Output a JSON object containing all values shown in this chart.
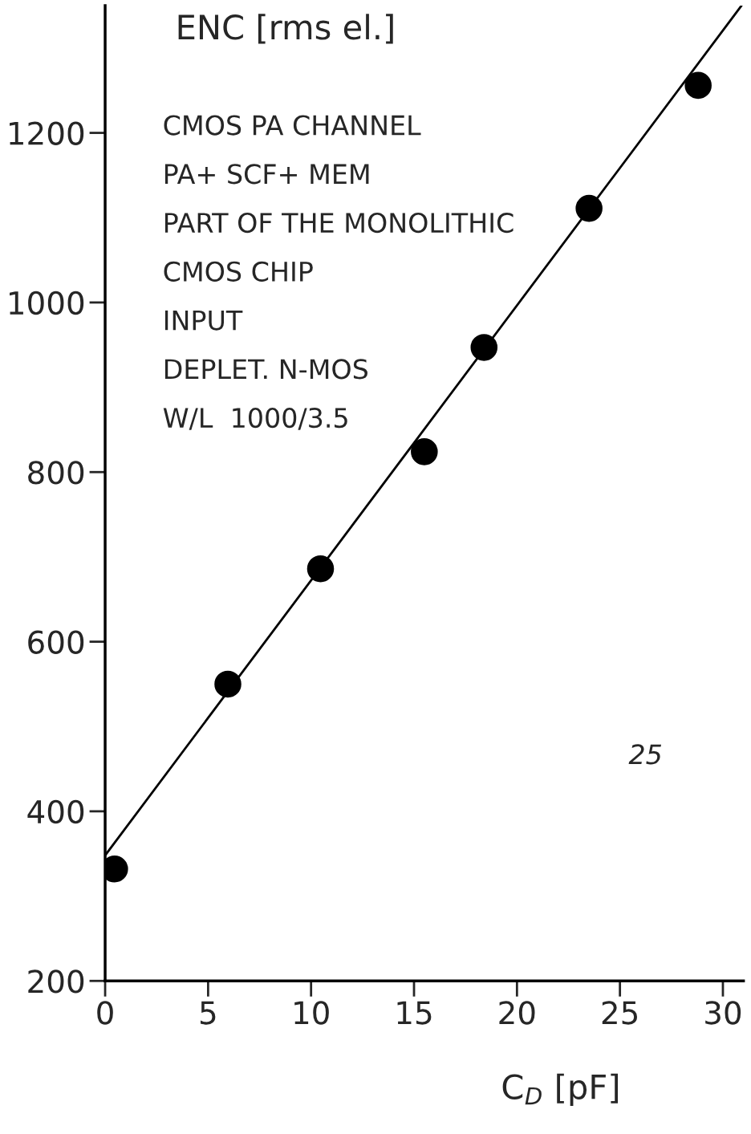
{
  "chart_data": {
    "type": "scatter",
    "xlabel": "C$_{D}$ [pF]",
    "ylabel": "ENC [rms el.]",
    "x": [
      0.46,
      5.96,
      10.46,
      15.5,
      18.4,
      23.5,
      28.8
    ],
    "series": [
      {
        "color": "#000000",
        "values": [
          332,
          550,
          686,
          824,
          947,
          1111,
          1256
        ]
      },
      {
        "type": "line",
        "marker": "none",
        "color": "#000000",
        "x": [
          0,
          30.9
        ],
        "values": [
          348,
          1350
        ]
      }
    ],
    "xlim": [
      0,
      31
    ],
    "ylim": [
      200,
      1350
    ],
    "xticks": [
      0,
      5,
      10,
      15,
      20,
      25,
      30
    ],
    "yticks": [
      200,
      400,
      600,
      800,
      1000,
      1200
    ],
    "grid": false,
    "marker": "circle",
    "annotations": [
      "CMOS PA CHANNEL",
      "PA+ SCF+ MEM",
      "PART OF THE MONOLITHIC",
      "CMOS CHIP",
      "INPUT",
      "DEPLET. N-MOS",
      "W/L  1000/3.5",
      "25"
    ]
  }
}
